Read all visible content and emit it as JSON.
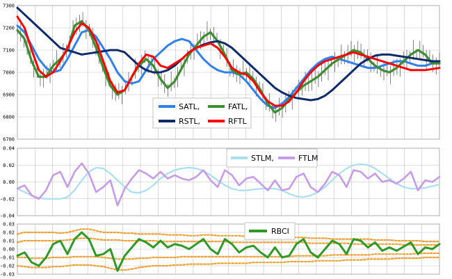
{
  "colors": {
    "SATL": "#2f80ed",
    "FATL": "#3c8d2f",
    "RSTL": "#0d2a6b",
    "RFTL": "#ff0000",
    "STLM": "#a8dff0",
    "FTLM": "#c79be8",
    "RBCI": "#2e9a25",
    "bands": "#f0a030",
    "grid": "#bfbfbf",
    "price": "#606060"
  },
  "chart_data": [
    {
      "type": "line",
      "panel": "price",
      "ylim": [
        6700,
        7300
      ],
      "yticks": [
        "7300",
        "7200",
        "7100",
        "7000",
        "6900",
        "6800",
        "6700"
      ],
      "grid": true,
      "legend_position": "bottom-center",
      "legend_labels": [
        "SATL,",
        "FATL,",
        "RSTL,",
        "RFTL"
      ],
      "x_count": 60,
      "series": [
        {
          "name": "SATL",
          "values": [
            7210,
            7180,
            7120,
            7060,
            7020,
            7000,
            7010,
            7060,
            7120,
            7180,
            7190,
            7160,
            7110,
            7060,
            7000,
            6960,
            6950,
            6960,
            7010,
            7060,
            7090,
            7120,
            7140,
            7150,
            7140,
            7100,
            7060,
            7030,
            7010,
            7000,
            7000,
            6990,
            6960,
            6920,
            6880,
            6850,
            6840,
            6860,
            6890,
            6930,
            6970,
            7010,
            7040,
            7060,
            7070,
            7060,
            7050,
            7040,
            7030,
            7020,
            7020,
            7030,
            7040,
            7050,
            7050,
            7040,
            7030,
            7030,
            7040,
            7050
          ]
        },
        {
          "name": "FATL",
          "values": [
            7190,
            7150,
            7050,
            6980,
            6980,
            7030,
            7060,
            7100,
            7210,
            7230,
            7190,
            7110,
            7020,
            6940,
            6900,
            6920,
            6980,
            7030,
            7060,
            7030,
            6970,
            6930,
            6960,
            7020,
            7080,
            7120,
            7160,
            7180,
            7140,
            7080,
            7010,
            6990,
            7000,
            6970,
            6920,
            6860,
            6820,
            6840,
            6880,
            6910,
            6940,
            6960,
            6980,
            7010,
            7040,
            7060,
            7080,
            7100,
            7090,
            7060,
            7030,
            7010,
            7000,
            7020,
            7050,
            7080,
            7100,
            7080,
            7040,
            7040
          ]
        },
        {
          "name": "RSTL",
          "values": [
            7290,
            7260,
            7230,
            7200,
            7170,
            7140,
            7110,
            7100,
            7090,
            7080,
            7085,
            7090,
            7095,
            7100,
            7100,
            7090,
            7060,
            7030,
            7010,
            7000,
            7000,
            7010,
            7030,
            7060,
            7090,
            7110,
            7125,
            7135,
            7140,
            7130,
            7110,
            7080,
            7050,
            7020,
            6990,
            6960,
            6930,
            6910,
            6895,
            6885,
            6880,
            6875,
            6880,
            6895,
            6920,
            6950,
            6980,
            7010,
            7040,
            7060,
            7075,
            7080,
            7080,
            7075,
            7070,
            7065,
            7060,
            7055,
            7050,
            7050
          ]
        },
        {
          "name": "RFTL",
          "values": [
            7250,
            7200,
            7100,
            7010,
            6980,
            7000,
            7050,
            7110,
            7180,
            7220,
            7200,
            7140,
            7050,
            6960,
            6910,
            6920,
            6980,
            7040,
            7080,
            7070,
            7030,
            7020,
            7040,
            7060,
            7090,
            7110,
            7120,
            7130,
            7110,
            7070,
            7020,
            7000,
            6990,
            6960,
            6910,
            6870,
            6850,
            6850,
            6870,
            6910,
            6960,
            7000,
            7030,
            7050,
            7060,
            7070,
            7080,
            7090,
            7080,
            7070,
            7060,
            7050,
            7040,
            7030,
            7020,
            7010,
            7010,
            7010,
            7015,
            7020
          ]
        }
      ]
    },
    {
      "type": "line",
      "panel": "stlm_ftlm",
      "ylim": [
        -0.04,
        0.04
      ],
      "yticks": [
        "0.04",
        "0.02",
        "0.00",
        "-0.02",
        "-0.04"
      ],
      "grid": true,
      "legend_position": "top-right",
      "legend_labels": [
        "STLM,",
        "FTLM"
      ],
      "x_count": 60,
      "series": [
        {
          "name": "STLM",
          "values": [
            -0.008,
            -0.012,
            -0.016,
            -0.019,
            -0.02,
            -0.02,
            -0.02,
            -0.018,
            -0.01,
            0.002,
            0.012,
            0.017,
            0.016,
            0.01,
            0.002,
            -0.006,
            -0.012,
            -0.013,
            -0.01,
            -0.004,
            0.004,
            0.01,
            0.014,
            0.016,
            0.017,
            0.016,
            0.013,
            0.008,
            0.002,
            -0.004,
            -0.008,
            -0.01,
            -0.01,
            -0.009,
            -0.008,
            -0.008,
            -0.008,
            -0.01,
            -0.014,
            -0.017,
            -0.018,
            -0.016,
            -0.012,
            -0.006,
            0.002,
            0.01,
            0.016,
            0.02,
            0.021,
            0.02,
            0.016,
            0.01,
            0.004,
            -0.002,
            -0.006,
            -0.008,
            -0.008,
            -0.007,
            -0.005,
            -0.003
          ]
        },
        {
          "name": "FTLM",
          "values": [
            -0.008,
            -0.004,
            -0.016,
            -0.02,
            -0.01,
            0.008,
            0.012,
            -0.006,
            0.012,
            0.022,
            0.01,
            -0.012,
            -0.006,
            0.002,
            -0.028,
            -0.008,
            0.004,
            0.014,
            0.01,
            0.004,
            0.012,
            0.004,
            0.008,
            0.004,
            0.002,
            0.006,
            0.014,
            0.002,
            -0.006,
            0.014,
            0.008,
            -0.004,
            0.004,
            0.006,
            -0.002,
            -0.01,
            0.002,
            -0.01,
            -0.008,
            0.006,
            0.01,
            -0.006,
            -0.012,
            -0.002,
            0.012,
            0.008,
            -0.006,
            0.014,
            0.012,
            0.004,
            0.01,
            0,
            0.002,
            -0.002,
            0.004,
            0.012,
            -0.01,
            0.002,
            0,
            0.006
          ]
        }
      ]
    },
    {
      "type": "line",
      "panel": "rbci",
      "ylim": [
        -0.03,
        0.03
      ],
      "yticks": [
        "0.03",
        "0.02",
        "0.01",
        "0.00",
        "-0.01",
        "-0.02",
        "-0.03"
      ],
      "grid": true,
      "legend_position": "top-center",
      "legend_labels": [
        "RBCI"
      ],
      "x_count": 60,
      "series": [
        {
          "name": "RBCI",
          "values": [
            -0.008,
            -0.004,
            -0.016,
            -0.02,
            -0.01,
            0.006,
            0.01,
            -0.006,
            0.012,
            0.02,
            0.012,
            -0.008,
            -0.006,
            0,
            -0.026,
            -0.008,
            0.002,
            0.012,
            0.008,
            0.002,
            0.01,
            0.002,
            0.006,
            0.004,
            0,
            0.006,
            0.012,
            0,
            -0.006,
            0.012,
            0.006,
            -0.004,
            0.002,
            0.004,
            -0.004,
            -0.01,
            0.002,
            -0.01,
            -0.008,
            0.006,
            0.012,
            -0.004,
            -0.01,
            0,
            0.01,
            0.006,
            -0.006,
            0.012,
            0.01,
            0.002,
            0.008,
            -0.002,
            0.002,
            -0.002,
            0.003,
            0.008,
            -0.006,
            0.002,
            0,
            0.006
          ]
        },
        {
          "name": "band_outer_upper",
          "values": [
            0.018,
            0.02,
            0.02,
            0.02,
            0.02,
            0.02,
            0.019,
            0.02,
            0.022,
            0.024,
            0.024,
            0.022,
            0.02,
            0.02,
            0.02,
            0.019,
            0.019,
            0.018,
            0.018,
            0.018,
            0.018,
            0.017,
            0.017,
            0.017,
            0.016,
            0.016,
            0.017,
            0.017,
            0.016,
            0.016,
            0.016,
            0.016,
            0.015,
            0.015,
            0.015,
            0.014,
            0.014,
            0.014,
            0.014,
            0.014,
            0.014,
            0.013,
            0.013,
            0.013,
            0.012,
            0.012,
            0.012,
            0.012,
            0.012,
            0.012,
            0.011,
            0.011,
            0.011,
            0.01,
            0.01,
            0.01,
            0.01,
            0.009,
            0.009,
            0.009
          ]
        },
        {
          "name": "band_inner_upper",
          "values": [
            0.008,
            0.01,
            0.01,
            0.01,
            0.01,
            0.01,
            0.01,
            0.011,
            0.012,
            0.013,
            0.013,
            0.012,
            0.011,
            0.011,
            0.011,
            0.01,
            0.01,
            0.01,
            0.01,
            0.01,
            0.009,
            0.009,
            0.009,
            0.009,
            0.009,
            0.009,
            0.009,
            0.009,
            0.009,
            0.009,
            0.008,
            0.008,
            0.008,
            0.008,
            0.008,
            0.008,
            0.008,
            0.008,
            0.008,
            0.008,
            0.008,
            0.007,
            0.007,
            0.007,
            0.007,
            0.007,
            0.007,
            0.006,
            0.006,
            0.006,
            0.006,
            0.006,
            0.006,
            0.006,
            0.005,
            0.005,
            0.005,
            0.005,
            0.005,
            0.005
          ]
        },
        {
          "name": "band_inner_lower",
          "values": [
            -0.01,
            -0.01,
            -0.011,
            -0.011,
            -0.011,
            -0.01,
            -0.01,
            -0.01,
            -0.009,
            -0.009,
            -0.009,
            -0.009,
            -0.01,
            -0.011,
            -0.012,
            -0.012,
            -0.012,
            -0.011,
            -0.011,
            -0.01,
            -0.01,
            -0.01,
            -0.01,
            -0.009,
            -0.009,
            -0.009,
            -0.009,
            -0.009,
            -0.009,
            -0.009,
            -0.009,
            -0.009,
            -0.009,
            -0.009,
            -0.009,
            -0.009,
            -0.009,
            -0.009,
            -0.009,
            -0.008,
            -0.008,
            -0.008,
            -0.008,
            -0.008,
            -0.007,
            -0.007,
            -0.007,
            -0.007,
            -0.007,
            -0.007,
            -0.006,
            -0.006,
            -0.006,
            -0.006,
            -0.006,
            -0.006,
            -0.005,
            -0.005,
            -0.005,
            -0.005
          ]
        },
        {
          "name": "band_outer_lower",
          "values": [
            -0.02,
            -0.021,
            -0.022,
            -0.022,
            -0.022,
            -0.021,
            -0.021,
            -0.02,
            -0.019,
            -0.019,
            -0.019,
            -0.02,
            -0.021,
            -0.023,
            -0.025,
            -0.025,
            -0.024,
            -0.022,
            -0.021,
            -0.02,
            -0.02,
            -0.02,
            -0.019,
            -0.019,
            -0.018,
            -0.018,
            -0.018,
            -0.018,
            -0.017,
            -0.017,
            -0.017,
            -0.017,
            -0.017,
            -0.016,
            -0.016,
            -0.016,
            -0.016,
            -0.016,
            -0.015,
            -0.015,
            -0.015,
            -0.015,
            -0.014,
            -0.014,
            -0.014,
            -0.014,
            -0.013,
            -0.013,
            -0.013,
            -0.012,
            -0.012,
            -0.012,
            -0.012,
            -0.011,
            -0.011,
            -0.011,
            -0.011,
            -0.01,
            -0.01,
            -0.01
          ]
        }
      ]
    }
  ]
}
